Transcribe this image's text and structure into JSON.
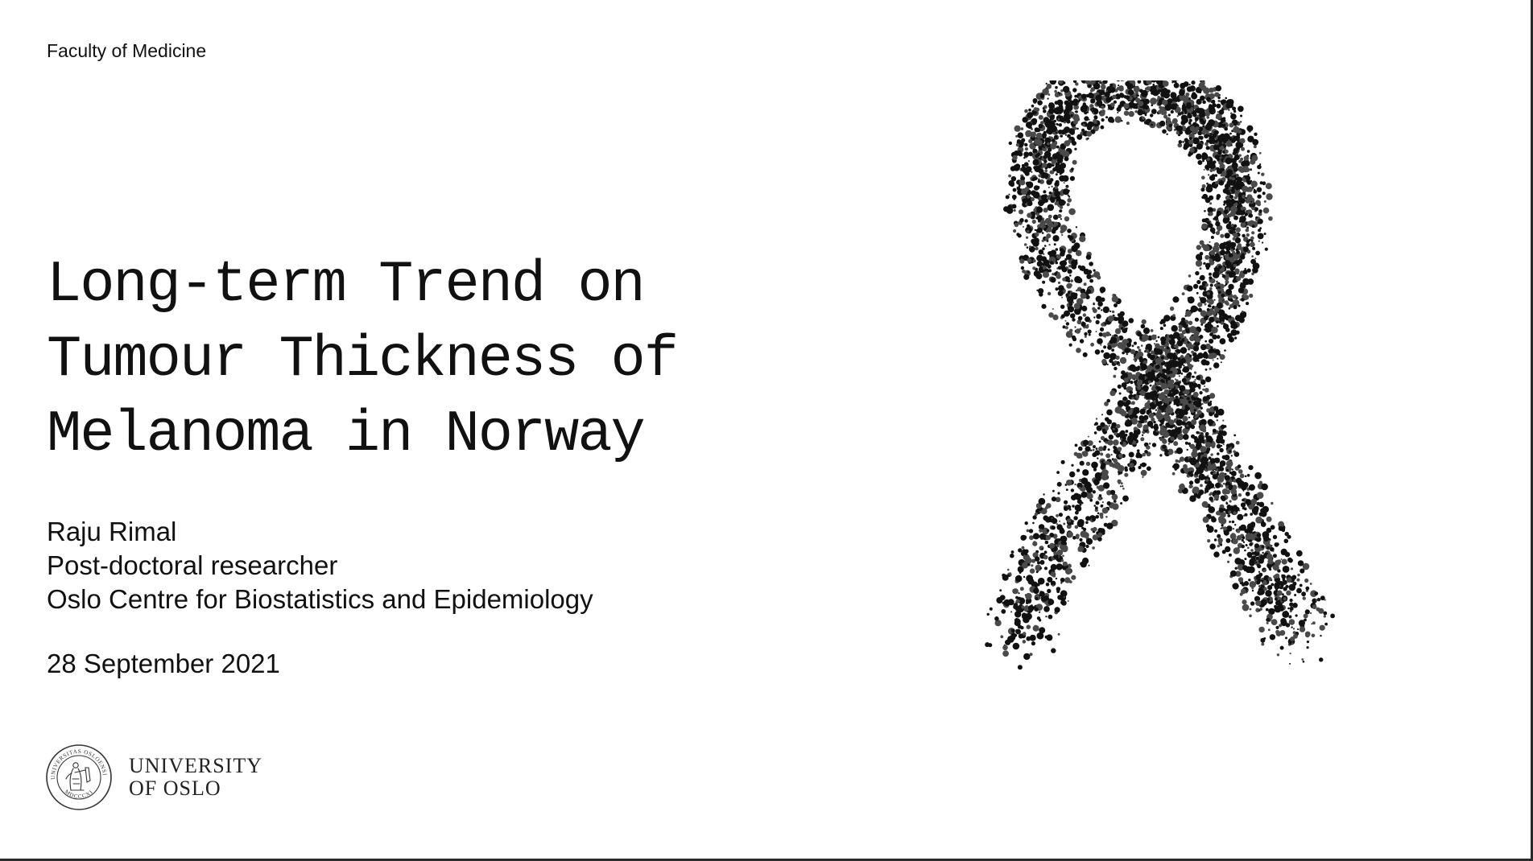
{
  "header": {
    "faculty": "Faculty of Medicine"
  },
  "title": {
    "lines": [
      "Long-term Trend on",
      "Tumour Thickness of",
      "Melanoma in Norway"
    ]
  },
  "author": {
    "name": "Raju Rimal",
    "position": "Post-doctoral researcher",
    "affiliation": "Oslo Centre for Biostatistics and Epidemiology"
  },
  "date": "28 September 2021",
  "logo": {
    "line1": "UNIVERSITY",
    "line2": "OF OSLO",
    "seal_text_top": "UNIVERSITAS OSLOENSIS",
    "seal_text_bottom": "MDCCCXI",
    "icon": "university-seal"
  },
  "image": {
    "icon": "awareness-ribbon"
  },
  "colors": {
    "text": "#111111",
    "ribbon_dark": "#111111",
    "ribbon_mid": "#4a4a4a"
  }
}
